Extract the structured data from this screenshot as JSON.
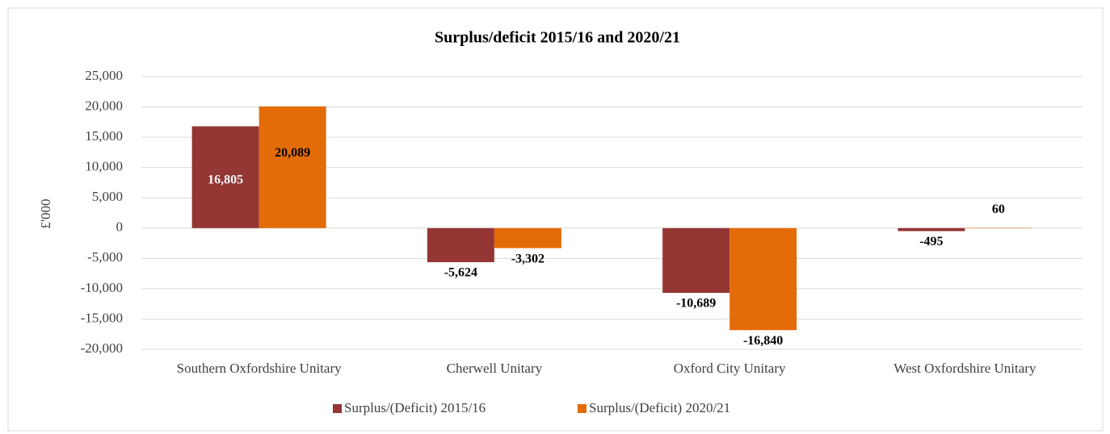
{
  "chart_data": {
    "type": "bar",
    "title": "Surplus/deficit 2015/16 and 2020/21",
    "y_label": "£'000",
    "categories": [
      "Southern Oxfordshire Unitary",
      "Cherwell Unitary",
      "Oxford City Unitary",
      "West Oxfordshire Unitary"
    ],
    "series": [
      {
        "name": "Surplus/(Deficit) 2015/16",
        "color": "#943634",
        "values": [
          16805,
          -5624,
          -10689,
          -495
        ],
        "value_labels": [
          "16,805",
          "-5,624",
          "-10,689",
          "-495"
        ]
      },
      {
        "name": "Surplus/(Deficit) 2020/21",
        "color": "#e36c09",
        "values": [
          20089,
          -3302,
          -16840,
          60
        ],
        "value_labels": [
          "20,089",
          "-3,302",
          "-16,840",
          "60"
        ]
      }
    ],
    "ylim": [
      -20000,
      25000
    ],
    "yticks": [
      {
        "value": -20000,
        "label": "-20,000"
      },
      {
        "value": -15000,
        "label": "-15,000"
      },
      {
        "value": -10000,
        "label": "-10,000"
      },
      {
        "value": -5000,
        "label": "-5,000"
      },
      0,
      {
        "value": 5000,
        "label": "5,000"
      },
      {
        "value": 10000,
        "label": "10,000"
      },
      {
        "value": 15000,
        "label": "15,000"
      },
      {
        "value": 20000,
        "label": "20,000"
      },
      {
        "value": 25000,
        "label": "25,000"
      }
    ],
    "grid": true,
    "legend": "bottom"
  }
}
